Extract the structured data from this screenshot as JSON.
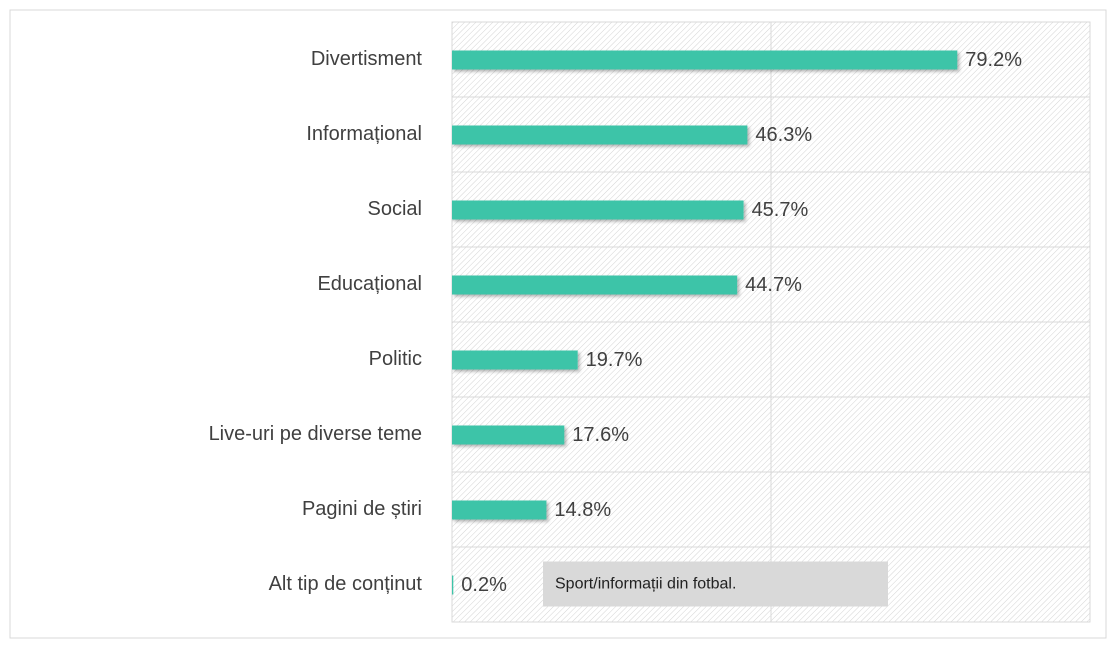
{
  "chart_data": {
    "type": "bar",
    "orientation": "horizontal",
    "categories": [
      "Divertisment",
      "Informațional",
      "Social",
      "Educațional",
      "Politic",
      "Live-uri pe diverse teme",
      "Pagini de știri",
      "Alt tip de conținut"
    ],
    "values": [
      79.2,
      46.3,
      45.7,
      44.7,
      19.7,
      17.6,
      14.8,
      0.2
    ],
    "value_labels": [
      "79.2%",
      "46.3%",
      "45.7%",
      "44.7%",
      "19.7%",
      "17.6%",
      "14.8%",
      "0.2%"
    ],
    "color": "#3ec4a8",
    "xlim": [
      0,
      100
    ],
    "xticks": [
      0,
      50,
      100
    ],
    "grid": true,
    "annotation": "Sport/informații din fotbal."
  }
}
